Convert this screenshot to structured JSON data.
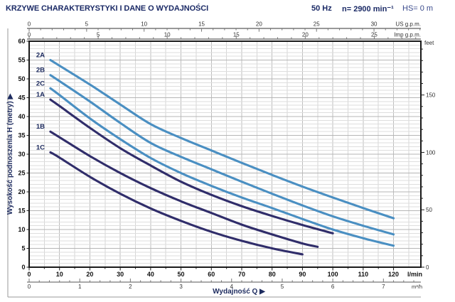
{
  "header": {
    "title": "KRZYWE CHARAKTERYSTYKI I DANE O WYDAJNOŚCI",
    "frequency": "50 Hz",
    "speed": "n= 2900 min⁻¹",
    "suction": "HS= 0 m"
  },
  "chart_data": {
    "type": "line",
    "title": "",
    "xlabel": "Wydajność Q",
    "ylabel": "Wysokość podnoszenia  H  (metry)",
    "legend_position": "curve-start-labels",
    "grid": "on",
    "axes": {
      "x_lmin": {
        "unit": "l/min",
        "min": 0,
        "max": 129,
        "labeled_ticks": [
          0,
          10,
          20,
          30,
          40,
          50,
          60,
          70,
          80,
          90,
          100,
          110,
          120
        ],
        "minor_step": 5
      },
      "x_m3h": {
        "unit": "m³/h",
        "labeled_ticks": [
          0,
          1,
          2,
          3,
          4,
          5,
          6,
          7
        ],
        "minor_step": 0.2,
        "max": 7.7,
        "lmin_per_unit": 16.6667
      },
      "x_us_gpm": {
        "unit": "US g.p.m.",
        "labeled_ticks": [
          0,
          5,
          10,
          15,
          20,
          25,
          30
        ],
        "minor_step": 1,
        "max": 34,
        "lmin_per_unit": 3.7854
      },
      "x_imp_gpm": {
        "unit": "Imp g.p.m.",
        "labeled_ticks": [
          0,
          5,
          10,
          15,
          20,
          25
        ],
        "minor_step": 1,
        "max": 28,
        "lmin_per_unit": 4.5461
      },
      "y_m": {
        "unit": "m",
        "min": 0,
        "max": 60,
        "labeled_ticks": [
          0,
          5,
          10,
          15,
          20,
          25,
          30,
          35,
          40,
          45,
          50,
          55,
          60
        ],
        "minor_step": 1
      },
      "y_feet": {
        "unit": "feet",
        "labeled_ticks": [
          0,
          50,
          100,
          150
        ],
        "minor_step": 10,
        "max": 190,
        "m_per_unit": 0.3048
      }
    },
    "series": [
      {
        "name": "2A",
        "color_key": "light",
        "points": [
          [
            7,
            55
          ],
          [
            10,
            53.5
          ],
          [
            20,
            48.5
          ],
          [
            30,
            43.2
          ],
          [
            40,
            38
          ],
          [
            50,
            34.3
          ],
          [
            60,
            31
          ],
          [
            70,
            27.7
          ],
          [
            80,
            24.5
          ],
          [
            90,
            21.4
          ],
          [
            100,
            18.5
          ],
          [
            110,
            15.7
          ],
          [
            120,
            13
          ]
        ]
      },
      {
        "name": "2B",
        "color_key": "light",
        "points": [
          [
            7,
            51
          ],
          [
            10,
            49.4
          ],
          [
            20,
            44
          ],
          [
            30,
            38.3
          ],
          [
            40,
            33
          ],
          [
            50,
            29.3
          ],
          [
            60,
            26
          ],
          [
            70,
            22.7
          ],
          [
            80,
            19.5
          ],
          [
            90,
            16.4
          ],
          [
            100,
            13.5
          ],
          [
            110,
            11
          ],
          [
            120,
            8.7
          ]
        ]
      },
      {
        "name": "2C",
        "color_key": "light",
        "points": [
          [
            7,
            47.5
          ],
          [
            10,
            45.7
          ],
          [
            20,
            39.5
          ],
          [
            30,
            34
          ],
          [
            40,
            29
          ],
          [
            50,
            25
          ],
          [
            60,
            21.6
          ],
          [
            70,
            18.5
          ],
          [
            80,
            15.7
          ],
          [
            90,
            12.8
          ],
          [
            100,
            10
          ],
          [
            110,
            7.7
          ],
          [
            120,
            5.7
          ]
        ]
      },
      {
        "name": "1A",
        "color_key": "dark",
        "points": [
          [
            7,
            44.5
          ],
          [
            10,
            42.8
          ],
          [
            20,
            37
          ],
          [
            30,
            31.6
          ],
          [
            40,
            27
          ],
          [
            50,
            22.7
          ],
          [
            60,
            19.2
          ],
          [
            70,
            16.2
          ],
          [
            80,
            13.6
          ],
          [
            90,
            11.2
          ],
          [
            100,
            9
          ]
        ]
      },
      {
        "name": "1B",
        "color_key": "dark",
        "points": [
          [
            7,
            36
          ],
          [
            10,
            34.5
          ],
          [
            20,
            29.5
          ],
          [
            30,
            25
          ],
          [
            40,
            21
          ],
          [
            50,
            17.5
          ],
          [
            60,
            14.4
          ],
          [
            70,
            11.3
          ],
          [
            80,
            8.7
          ],
          [
            90,
            6.3
          ],
          [
            95,
            5.4
          ]
        ]
      },
      {
        "name": "1C",
        "color_key": "dark",
        "points": [
          [
            7,
            30.5
          ],
          [
            10,
            29.1
          ],
          [
            20,
            24
          ],
          [
            30,
            19.5
          ],
          [
            40,
            15.6
          ],
          [
            50,
            12.3
          ],
          [
            60,
            9.4
          ],
          [
            70,
            7
          ],
          [
            80,
            5
          ],
          [
            90,
            3.4
          ]
        ]
      }
    ],
    "arrow_glyph": "▶"
  },
  "colors": {
    "curve_light": "#4a8fc2",
    "curve_dark": "#302d6a",
    "label_navy": "#1c2a5e",
    "title_navy": "#1b2a66",
    "grid_minor_h": "#dedede",
    "grid_major_h": "#b5b5b5",
    "grid_minor_v": "#d6d6d6",
    "grid_major_v": "#bdbdbd",
    "axis_gray": "#777777",
    "frame_gray": "#999999",
    "border_black": "#1a1a1a",
    "tick_text": "#333333",
    "main_text": "#111111"
  }
}
